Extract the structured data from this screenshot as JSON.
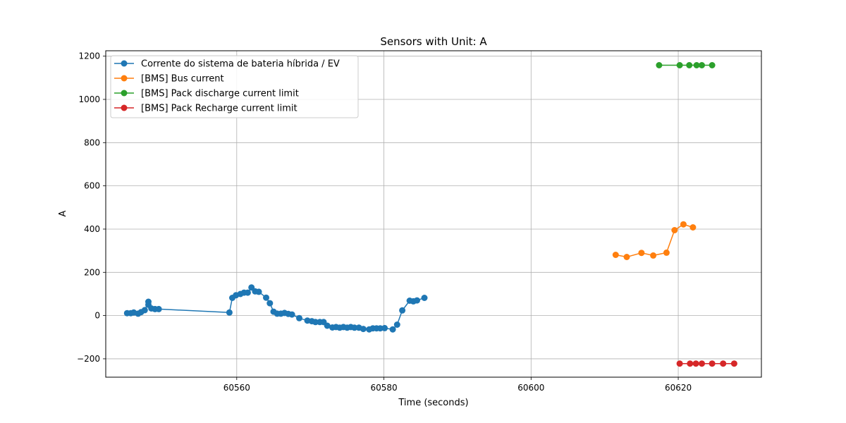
{
  "chart_data": {
    "type": "line",
    "title": "Sensors with Unit: A",
    "xlabel": "Time (seconds)",
    "ylabel": "A",
    "xlim": [
      60542.2,
      60631.3
    ],
    "ylim": [
      -285,
      1225
    ],
    "xticks": [
      60560,
      60580,
      60600,
      60620
    ],
    "yticks": [
      -200,
      0,
      200,
      400,
      600,
      800,
      1000,
      1200
    ],
    "grid": true,
    "legend_position": "top-left",
    "series": [
      {
        "name": "Corrente do sistema de bateria híbrida / EV",
        "color": "#1f77b4",
        "points": [
          [
            60545.1,
            11
          ],
          [
            60545.6,
            11
          ],
          [
            60546.0,
            14
          ],
          [
            60546.6,
            9
          ],
          [
            60547.0,
            16
          ],
          [
            60547.5,
            25
          ],
          [
            60548.0,
            64
          ],
          [
            60548.0,
            50
          ],
          [
            60548.4,
            33
          ],
          [
            60548.9,
            30
          ],
          [
            60549.4,
            30
          ],
          [
            60559.0,
            14
          ],
          [
            60559.4,
            82
          ],
          [
            60559.9,
            94
          ],
          [
            60560.5,
            100
          ],
          [
            60561.0,
            106
          ],
          [
            60561.5,
            106
          ],
          [
            60562.0,
            130
          ],
          [
            60562.5,
            112
          ],
          [
            60563.0,
            110
          ],
          [
            60564.0,
            83
          ],
          [
            60564.5,
            57
          ],
          [
            60565.0,
            18
          ],
          [
            60565.5,
            9
          ],
          [
            60566.0,
            9
          ],
          [
            60566.5,
            12
          ],
          [
            60567.0,
            8
          ],
          [
            60567.5,
            5
          ],
          [
            60568.5,
            -12
          ],
          [
            60569.6,
            -23
          ],
          [
            60570.2,
            -26
          ],
          [
            60570.7,
            -30
          ],
          [
            60571.3,
            -30
          ],
          [
            60571.8,
            -30
          ],
          [
            60572.3,
            -47
          ],
          [
            60573.0,
            -55
          ],
          [
            60573.5,
            -53
          ],
          [
            60574.0,
            -56
          ],
          [
            60574.5,
            -53
          ],
          [
            60575.0,
            -56
          ],
          [
            60575.5,
            -53
          ],
          [
            60576.0,
            -56
          ],
          [
            60576.6,
            -56
          ],
          [
            60577.2,
            -62
          ],
          [
            60578.0,
            -64
          ],
          [
            60578.5,
            -59
          ],
          [
            60579.0,
            -59
          ],
          [
            60579.5,
            -59
          ],
          [
            60580.1,
            -58
          ],
          [
            60581.2,
            -64
          ],
          [
            60581.8,
            -42
          ],
          [
            60582.5,
            24
          ],
          [
            60583.5,
            69
          ],
          [
            60584.0,
            66
          ],
          [
            60584.5,
            70
          ],
          [
            60585.5,
            82
          ]
        ]
      },
      {
        "name": "[BMS] Bus current",
        "color": "#ff7f0e",
        "points": [
          [
            60611.5,
            281
          ],
          [
            60613.0,
            271
          ],
          [
            60615.0,
            290
          ],
          [
            60616.6,
            278
          ],
          [
            60618.4,
            291
          ],
          [
            60619.5,
            395
          ],
          [
            60620.7,
            422
          ],
          [
            60622.0,
            408
          ]
        ]
      },
      {
        "name": "[BMS] Pack discharge current limit",
        "color": "#2ca02c",
        "points": [
          [
            60617.4,
            1158
          ],
          [
            60620.2,
            1158
          ],
          [
            60621.5,
            1158
          ],
          [
            60622.5,
            1158
          ],
          [
            60623.2,
            1158
          ],
          [
            60624.6,
            1158
          ]
        ]
      },
      {
        "name": "[BMS] Pack Recharge current limit",
        "color": "#d62728",
        "points": [
          [
            60620.2,
            -222
          ],
          [
            60621.6,
            -222
          ],
          [
            60622.4,
            -222
          ],
          [
            60623.2,
            -222
          ],
          [
            60624.6,
            -222
          ],
          [
            60626.1,
            -222
          ],
          [
            60627.6,
            -222
          ]
        ]
      }
    ]
  }
}
